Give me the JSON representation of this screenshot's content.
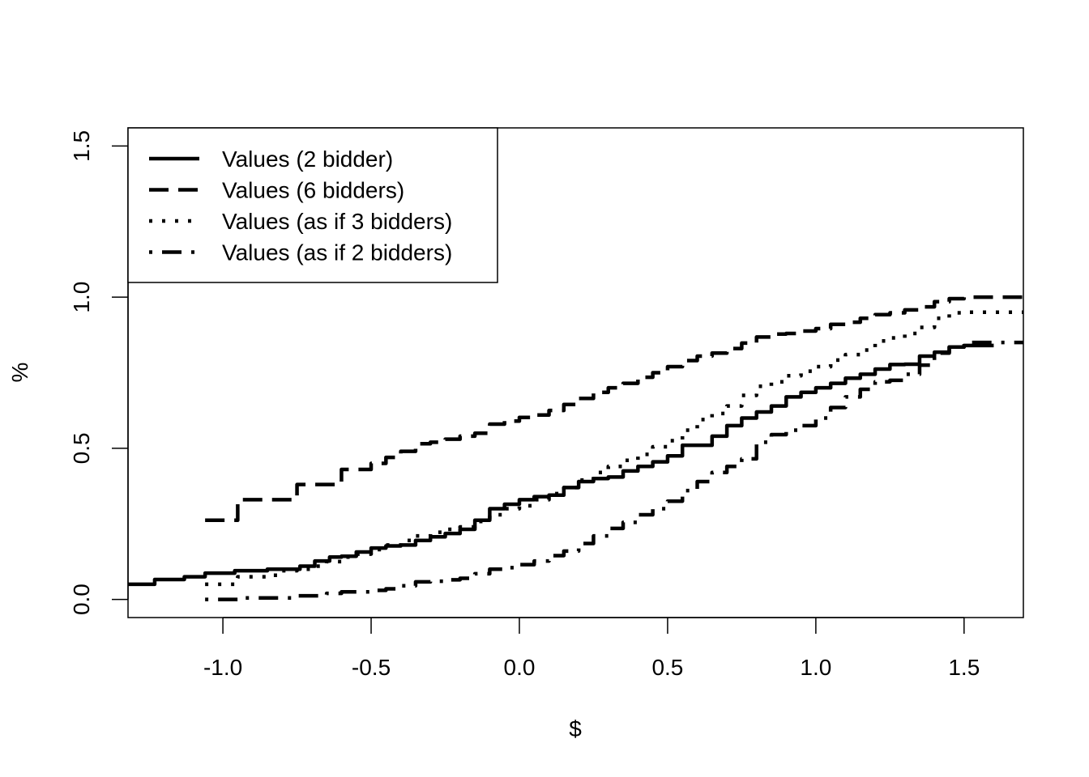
{
  "chart_data": {
    "type": "line",
    "title": "",
    "xlabel": "$",
    "ylabel": "%",
    "xlim": [
      -1.32,
      1.7
    ],
    "ylim": [
      -0.06,
      1.56
    ],
    "x_ticks": [
      "-1.0",
      "-0.5",
      "0.0",
      "0.5",
      "1.0",
      "1.5"
    ],
    "y_ticks": [
      "0.0",
      "0.5",
      "1.0",
      "1.5"
    ],
    "grid": false,
    "legend_position": "top-left",
    "series": [
      {
        "name": "Values (2 bidder)",
        "dash": "solid",
        "x": [
          -1.32,
          -1.28,
          -1.23,
          -1.18,
          -1.13,
          -1.06,
          -1.0,
          -0.96,
          -0.9,
          -0.85,
          -0.8,
          -0.74,
          -0.69,
          -0.64,
          -0.6,
          -0.55,
          -0.5,
          -0.45,
          -0.4,
          -0.35,
          -0.3,
          -0.25,
          -0.2,
          -0.15,
          -0.1,
          -0.05,
          0.0,
          0.05,
          0.1,
          0.15,
          0.2,
          0.25,
          0.3,
          0.35,
          0.4,
          0.45,
          0.5,
          0.55,
          0.6,
          0.65,
          0.7,
          0.75,
          0.8,
          0.85,
          0.9,
          0.95,
          1.0,
          1.05,
          1.1,
          1.15,
          1.2,
          1.25,
          1.3,
          1.35,
          1.4,
          1.45,
          1.5,
          1.6
        ],
        "y": [
          0.05,
          0.05,
          0.066,
          0.066,
          0.075,
          0.087,
          0.087,
          0.095,
          0.095,
          0.1,
          0.1,
          0.11,
          0.127,
          0.14,
          0.143,
          0.157,
          0.17,
          0.177,
          0.18,
          0.195,
          0.207,
          0.218,
          0.232,
          0.262,
          0.3,
          0.315,
          0.33,
          0.34,
          0.345,
          0.37,
          0.39,
          0.4,
          0.405,
          0.425,
          0.44,
          0.455,
          0.475,
          0.51,
          0.51,
          0.54,
          0.575,
          0.6,
          0.62,
          0.64,
          0.67,
          0.685,
          0.7,
          0.715,
          0.732,
          0.745,
          0.762,
          0.777,
          0.778,
          0.805,
          0.818,
          0.835,
          0.84,
          0.84
        ]
      },
      {
        "name": "Values (6 bidders)",
        "dash": "dashed",
        "x": [
          -1.06,
          -1.0,
          -0.95,
          -0.9,
          -0.85,
          -0.8,
          -0.75,
          -0.7,
          -0.65,
          -0.6,
          -0.55,
          -0.5,
          -0.45,
          -0.4,
          -0.35,
          -0.3,
          -0.25,
          -0.2,
          -0.15,
          -0.1,
          -0.05,
          0.0,
          0.05,
          0.1,
          0.15,
          0.2,
          0.25,
          0.3,
          0.35,
          0.4,
          0.45,
          0.5,
          0.55,
          0.6,
          0.65,
          0.7,
          0.75,
          0.8,
          0.85,
          0.9,
          0.95,
          1.0,
          1.05,
          1.1,
          1.15,
          1.2,
          1.25,
          1.3,
          1.35,
          1.4,
          1.45,
          1.5,
          1.6,
          1.7
        ],
        "y": [
          0.262,
          0.262,
          0.33,
          0.33,
          0.33,
          0.33,
          0.38,
          0.38,
          0.38,
          0.43,
          0.43,
          0.45,
          0.47,
          0.49,
          0.515,
          0.52,
          0.53,
          0.54,
          0.55,
          0.58,
          0.59,
          0.602,
          0.61,
          0.625,
          0.645,
          0.665,
          0.685,
          0.7,
          0.715,
          0.735,
          0.75,
          0.77,
          0.79,
          0.805,
          0.815,
          0.83,
          0.848,
          0.868,
          0.878,
          0.88,
          0.888,
          0.896,
          0.91,
          0.917,
          0.93,
          0.942,
          0.948,
          0.958,
          0.968,
          0.985,
          0.995,
          1.0,
          1.0,
          1.0
        ]
      },
      {
        "name": "Values (as if 3 bidders)",
        "dash": "dotted",
        "x": [
          -1.06,
          -1.0,
          -0.95,
          -0.9,
          -0.85,
          -0.8,
          -0.75,
          -0.7,
          -0.65,
          -0.6,
          -0.55,
          -0.5,
          -0.45,
          -0.4,
          -0.35,
          -0.3,
          -0.25,
          -0.2,
          -0.15,
          -0.1,
          -0.05,
          0.0,
          0.05,
          0.1,
          0.15,
          0.2,
          0.25,
          0.3,
          0.35,
          0.4,
          0.45,
          0.5,
          0.55,
          0.6,
          0.65,
          0.7,
          0.75,
          0.8,
          0.85,
          0.9,
          0.95,
          1.0,
          1.05,
          1.1,
          1.15,
          1.2,
          1.25,
          1.3,
          1.35,
          1.4,
          1.45,
          1.5,
          1.6,
          1.7
        ],
        "y": [
          0.05,
          0.05,
          0.075,
          0.075,
          0.08,
          0.095,
          0.1,
          0.11,
          0.125,
          0.14,
          0.15,
          0.165,
          0.18,
          0.195,
          0.21,
          0.222,
          0.232,
          0.24,
          0.258,
          0.28,
          0.3,
          0.31,
          0.33,
          0.35,
          0.37,
          0.395,
          0.42,
          0.44,
          0.46,
          0.48,
          0.505,
          0.525,
          0.56,
          0.595,
          0.615,
          0.64,
          0.675,
          0.705,
          0.72,
          0.74,
          0.755,
          0.77,
          0.792,
          0.81,
          0.825,
          0.855,
          0.865,
          0.88,
          0.9,
          0.93,
          0.948,
          0.95,
          0.95,
          0.95
        ]
      },
      {
        "name": "Values (as if 2 bidders)",
        "dash": "dotdash",
        "x": [
          -1.06,
          -1.0,
          -0.95,
          -0.9,
          -0.85,
          -0.8,
          -0.75,
          -0.7,
          -0.65,
          -0.6,
          -0.55,
          -0.5,
          -0.45,
          -0.4,
          -0.35,
          -0.3,
          -0.25,
          -0.2,
          -0.15,
          -0.1,
          -0.05,
          0.0,
          0.05,
          0.1,
          0.15,
          0.2,
          0.25,
          0.3,
          0.35,
          0.4,
          0.45,
          0.5,
          0.55,
          0.6,
          0.65,
          0.7,
          0.75,
          0.8,
          0.85,
          0.9,
          0.95,
          1.0,
          1.05,
          1.1,
          1.15,
          1.2,
          1.25,
          1.3,
          1.35,
          1.4,
          1.45,
          1.5,
          1.6,
          1.7
        ],
        "y": [
          0.0,
          0.0,
          0.005,
          0.005,
          0.005,
          0.005,
          0.012,
          0.012,
          0.02,
          0.025,
          0.025,
          0.03,
          0.035,
          0.045,
          0.058,
          0.06,
          0.065,
          0.07,
          0.085,
          0.1,
          0.105,
          0.115,
          0.127,
          0.145,
          0.16,
          0.185,
          0.21,
          0.235,
          0.255,
          0.28,
          0.3,
          0.325,
          0.36,
          0.39,
          0.42,
          0.44,
          0.465,
          0.52,
          0.545,
          0.56,
          0.575,
          0.6,
          0.635,
          0.67,
          0.695,
          0.72,
          0.725,
          0.745,
          0.775,
          0.815,
          0.835,
          0.85,
          0.85,
          0.85
        ]
      }
    ]
  }
}
